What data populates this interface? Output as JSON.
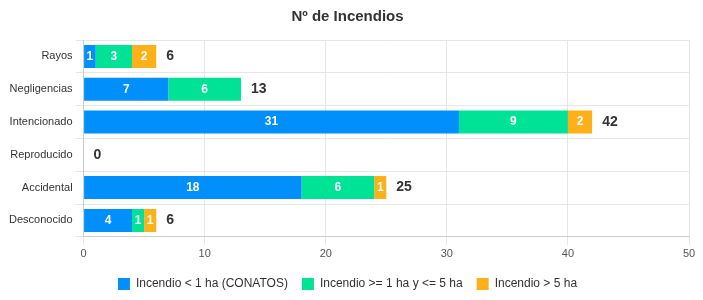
{
  "chart_data": {
    "type": "bar",
    "title": "Nº de Incendios",
    "orientation": "horizontal",
    "stacked": true,
    "data_labels": true,
    "grid": true,
    "legend": "bottom",
    "categories": [
      "Rayos",
      "Negligencias",
      "Intencionado",
      "Reproducido",
      "Accidental",
      "Desconocido"
    ],
    "series": [
      {
        "name": "Incendio < 1 ha (CONATOS)",
        "color": "#008ffb",
        "values": [
          1,
          7,
          31,
          null,
          18,
          4
        ]
      },
      {
        "name": "Incendio >= 1 ha y <= 5 ha",
        "color": "#00e396",
        "values": [
          3,
          6,
          9,
          null,
          6,
          1
        ]
      },
      {
        "name": "Incendio > 5 ha",
        "color": "#feb019",
        "values": [
          2,
          null,
          2,
          null,
          1,
          1
        ]
      }
    ],
    "totals": [
      6,
      13,
      42,
      0,
      25,
      6
    ],
    "xlim": [
      0,
      50
    ],
    "xticks": [
      0,
      10,
      20,
      30,
      40,
      50
    ]
  }
}
